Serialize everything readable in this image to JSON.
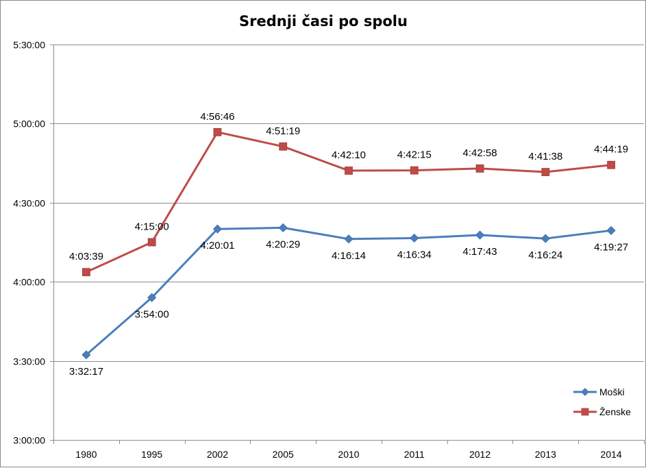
{
  "chart_data": {
    "type": "line",
    "title": "Srednji časi po spolu",
    "xlabel": "",
    "ylabel": "",
    "categories": [
      "1980",
      "1995",
      "2002",
      "2005",
      "2010",
      "2011",
      "2012",
      "2013",
      "2014"
    ],
    "y_ticks": [
      "3:00:00",
      "3:30:00",
      "4:00:00",
      "4:30:00",
      "5:00:00",
      "5:30:00"
    ],
    "ylim": [
      "3:00:00",
      "5:30:00"
    ],
    "grid": true,
    "legend_position": "bottom-right",
    "series": [
      {
        "name": "Moški",
        "color": "#4a7ebb",
        "marker": "diamond",
        "values": [
          "3:32:17",
          "3:54:00",
          "4:20:01",
          "4:20:29",
          "4:16:14",
          "4:16:34",
          "4:17:43",
          "4:16:24",
          "4:19:27"
        ],
        "labels": [
          "3:32:17",
          "3:54:00",
          "4:20:01",
          "4:20:29",
          "4:16:14",
          "4:16:34",
          "4:17:43",
          "4:16:24",
          "4:19:27"
        ]
      },
      {
        "name": "Ženske",
        "color": "#be4b48",
        "marker": "square",
        "values": [
          "4:03:39",
          "4:15:00",
          "4:56:46",
          "4:51:19",
          "4:42:10",
          "4:42:15",
          "4:42:58",
          "4:41:38",
          "4:44:19"
        ],
        "labels": [
          "4:03:39",
          "4:15:00",
          "4:56:46",
          "4:51:19",
          "4:42:10",
          "4:42:15",
          "4:42:58",
          "4:41:38",
          "4:44:19"
        ]
      }
    ]
  }
}
